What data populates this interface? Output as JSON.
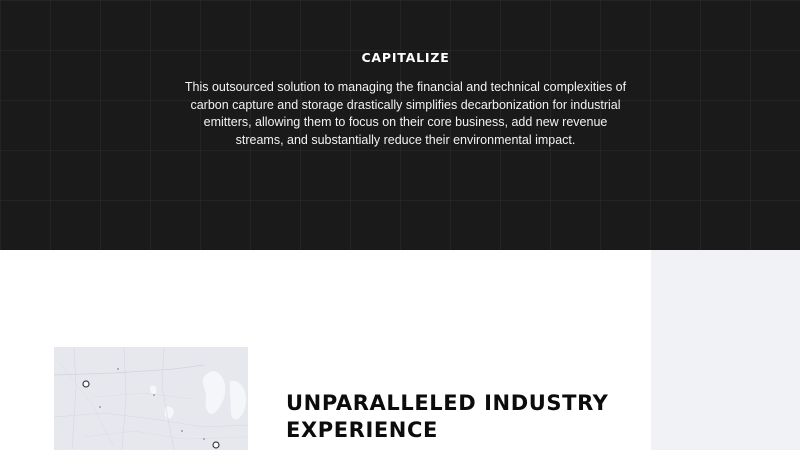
{
  "hero": {
    "title": "CAPITALIZE",
    "body": "This outsourced solution to managing the financial and technical complexities of carbon capture and storage drastically simplifies decarbonization for industrial emitters, allowing them to focus on their core business, add new revenue streams, and substantially reduce their environmental impact."
  },
  "experience": {
    "heading": "UNPARALLELED INDUSTRY EXPERIENCE",
    "map_marker_icon": "location-marker-icon"
  },
  "colors": {
    "hero_background": "#1b1a1b",
    "hero_text": "#ffffff",
    "content_background": "#ffffff",
    "side_panel": "#f1f2f6",
    "heading_text": "#0c0c0c",
    "map_background": "#e7e9ef"
  }
}
